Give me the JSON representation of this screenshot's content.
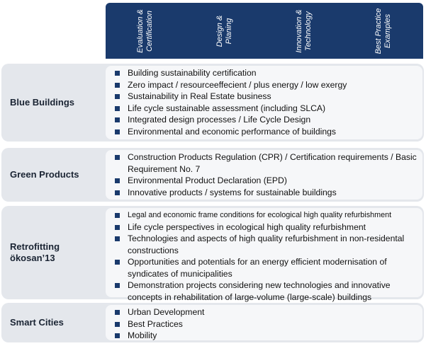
{
  "columns": [
    "Evaluation & Certification",
    "Design & Planing",
    "Innovation & Technology",
    "Best Practice Examples"
  ],
  "groups": [
    {
      "label": "Blue Buildings",
      "items": [
        "Building sustainability certification",
        "Zero impact / resourceeffecient / plus energy / low exergy",
        "Sustainability in Real Estate business",
        "Life cycle sustainable assessment (including SLCA)",
        "Integrated design processes / Life Cycle Design",
        "Environmental and economic performance of buildings"
      ]
    },
    {
      "label": "Green Products",
      "items": [
        "Construction Products Regulation (CPR) / Certification requirements / Basic Requirement No. 7",
        "Environmental Product Declaration (EPD)",
        "Innovative products / systems for sustainable buildings"
      ]
    },
    {
      "label": "Retrofitting\nökosan’13",
      "items": [
        "Legal and economic frame conditions for ecological high quality refurbishment",
        "Life cycle perspectives in ecological high quality refurbishment",
        "Technologies and aspects of high quality refurbishment in non-residental constructions",
        "Opportunities and potentials for an energy efficient modernisation of syndicates of municipalities",
        "Demonstration projects considering new technologies and innovative concepts in rehabilitation of large-volume (large-scale) buildings"
      ]
    },
    {
      "label": "Smart Cities",
      "items": [
        "Urban Development",
        "Best Practices",
        "Mobility"
      ]
    }
  ]
}
